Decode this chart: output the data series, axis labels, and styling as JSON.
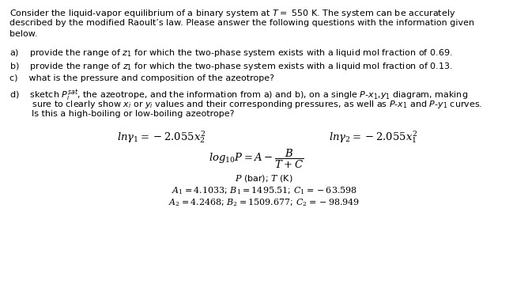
{
  "background_color": "#ffffff",
  "intro_line1": "Consider the liquid-vapor equilibrium of a binary system at $T=$ 550 K. The system can be accurately",
  "intro_line2": "described by the modified Raoult’s law. Please answer the following questions with the information given",
  "intro_line3": "below.",
  "item_a": "a)    provide the range of $z_1$ for which the two-phase system exists with a liquid mol fraction of 0.69.",
  "item_b": "b)    provide the range of $z_1$ for which the two-phase system exists with a liquid mol fraction of 0.13.",
  "item_c": "c)    what is the pressure and composition of the azeotrope?",
  "item_d1": "d)    sketch $P_i^{sat}$, the azeotrope, and the information from a) and b), on a single $P$-$x_1$,$y_1$ diagram, making",
  "item_d2": "        sure to clearly show $x_i$ or $y_i$ values and their corresponding pressures, as well as $P$-$x_1$ and $P$-$y_1$ curves.",
  "item_d3": "        Is this a high-boiling or low-boiling azeotrope?",
  "eq_gamma1": "$ln\\gamma_1 = -2.055x_2^2$",
  "eq_gamma2": "$ln\\gamma_2 = -2.055x_1^2$",
  "eq_antoine_left": "$log_{10}P = A -$",
  "eq_antoine_frac_num": "$B$",
  "eq_antoine_frac_den": "$T+C$",
  "eq_units": "$P$ (bar); $T$ (K)",
  "eq_params1": "$A_1 = 4.1033$; $B_1 = 1495.51$; $C_1 = -63.598$",
  "eq_params2": "$A_2 = 4.2468$; $B_2 = 1509.677$; $C_2 = -98.949$",
  "fontsize": 8.0,
  "eq_fontsize": 9.5
}
